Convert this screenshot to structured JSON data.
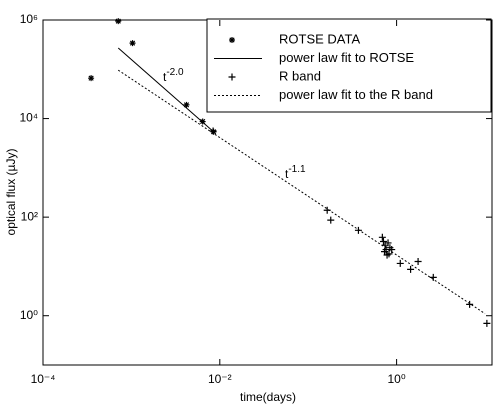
{
  "chart_data": {
    "type": "scatter",
    "xlabel": "time(days)",
    "ylabel": "optical flux (µJy)",
    "xscale": "log",
    "yscale": "log",
    "xlim": [
      0.0001,
      12
    ],
    "ylim": [
      0.1,
      1000000
    ],
    "xticks": [
      {
        "value": 0.0001,
        "label": "10⁻⁴"
      },
      {
        "value": 0.01,
        "label": "10⁻²"
      },
      {
        "value": 1,
        "label": "10⁰"
      }
    ],
    "yticks": [
      {
        "value": 1,
        "label": "10⁰"
      },
      {
        "value": 100,
        "label": "10²"
      },
      {
        "value": 10000,
        "label": "10⁴"
      },
      {
        "value": 1000000,
        "label": "10⁶"
      }
    ],
    "legend": "upper right",
    "annotations": [
      {
        "text": "t",
        "exponent": "-2.0"
      },
      {
        "text": "t",
        "exponent": "-1.1"
      }
    ],
    "series": [
      {
        "name": "ROTSE DATA",
        "marker": "asterisk",
        "color": "#000000",
        "x": [
          0.00035,
          0.00071,
          0.00103,
          0.0042,
          0.0064,
          0.0085
        ],
        "values": [
          66000,
          950000,
          340000,
          19000,
          8700,
          5400
        ]
      },
      {
        "name": "power law fit to ROTSE",
        "style": "solid",
        "color": "#000000",
        "x": [
          0.00071,
          0.0085
        ],
        "values": [
          270000,
          5400
        ]
      },
      {
        "name": "R band",
        "marker": "plus",
        "color": "#000000",
        "x": [
          0.0084,
          0.164,
          0.18,
          0.37,
          0.69,
          0.71,
          0.74,
          0.76,
          0.8,
          0.82,
          0.84,
          0.88,
          0.78,
          0.73,
          1.1,
          1.44,
          1.75,
          2.6,
          6.7,
          10.5
        ],
        "values": [
          5600,
          138,
          87,
          54,
          39,
          32,
          27,
          22,
          30,
          18,
          24,
          22,
          17,
          20,
          11.5,
          8.7,
          12.6,
          6,
          1.7,
          0.7
        ]
      },
      {
        "name": "power law fit to the R band",
        "style": "dotted",
        "color": "#000000",
        "x": [
          0.00071,
          10
        ],
        "values": [
          96000,
          1.1
        ]
      }
    ]
  }
}
